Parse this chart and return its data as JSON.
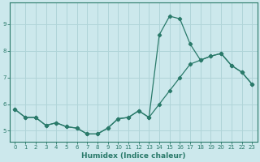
{
  "xlabel": "Humidex (Indice chaleur)",
  "background_color": "#cce8ec",
  "grid_color": "#b0d4d8",
  "line_color": "#2a7a6a",
  "xlim": [
    -0.5,
    23.5
  ],
  "ylim": [
    4.6,
    9.8
  ],
  "x_ticks": [
    0,
    1,
    2,
    3,
    4,
    5,
    6,
    7,
    8,
    9,
    10,
    11,
    12,
    13,
    14,
    15,
    16,
    17,
    18,
    19,
    20,
    21,
    22,
    23
  ],
  "y_ticks": [
    5,
    6,
    7,
    8,
    9
  ],
  "line1_x": [
    0,
    1,
    2,
    3,
    4,
    5,
    6,
    7,
    8,
    9,
    10,
    11,
    12,
    13,
    14,
    15,
    16,
    17,
    18,
    19,
    20,
    21,
    22,
    23
  ],
  "line1_y": [
    5.8,
    5.5,
    5.5,
    5.2,
    5.3,
    5.15,
    5.1,
    4.88,
    4.88,
    5.1,
    5.45,
    5.5,
    5.75,
    5.5,
    6.0,
    6.5,
    7.0,
    7.5,
    7.65,
    7.8,
    7.9,
    7.45,
    7.2,
    6.75
  ],
  "line2_x": [
    0,
    1,
    2,
    3,
    4,
    5,
    6,
    7,
    8,
    9,
    10,
    11,
    12,
    13,
    14,
    15,
    16,
    17,
    18,
    19,
    20,
    21,
    22,
    23
  ],
  "line2_y": [
    5.8,
    5.5,
    5.5,
    5.2,
    5.3,
    5.15,
    5.1,
    4.88,
    4.88,
    5.1,
    5.45,
    5.5,
    5.75,
    5.5,
    8.6,
    9.3,
    9.2,
    8.25,
    7.65,
    7.8,
    7.9,
    7.45,
    7.2,
    6.75
  ]
}
